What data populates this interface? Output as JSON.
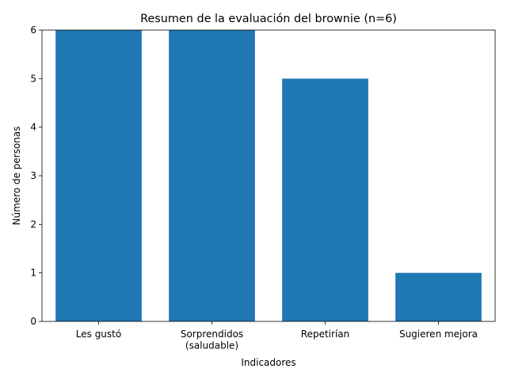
{
  "chart_data": {
    "type": "bar",
    "title": "Resumen de la evaluación del brownie (n=6)",
    "x_label": "Indicadores",
    "y_label": "Número de personas",
    "categories": [
      "Les gustó",
      "Sorprendidos\n(saludable)",
      "Repetirían",
      "Sugieren mejora"
    ],
    "values": [
      6,
      6,
      5,
      1
    ],
    "color": "#1f77b4",
    "ylim": [
      0,
      6
    ],
    "yticks": [
      0,
      1,
      2,
      3,
      4,
      5,
      6
    ]
  }
}
